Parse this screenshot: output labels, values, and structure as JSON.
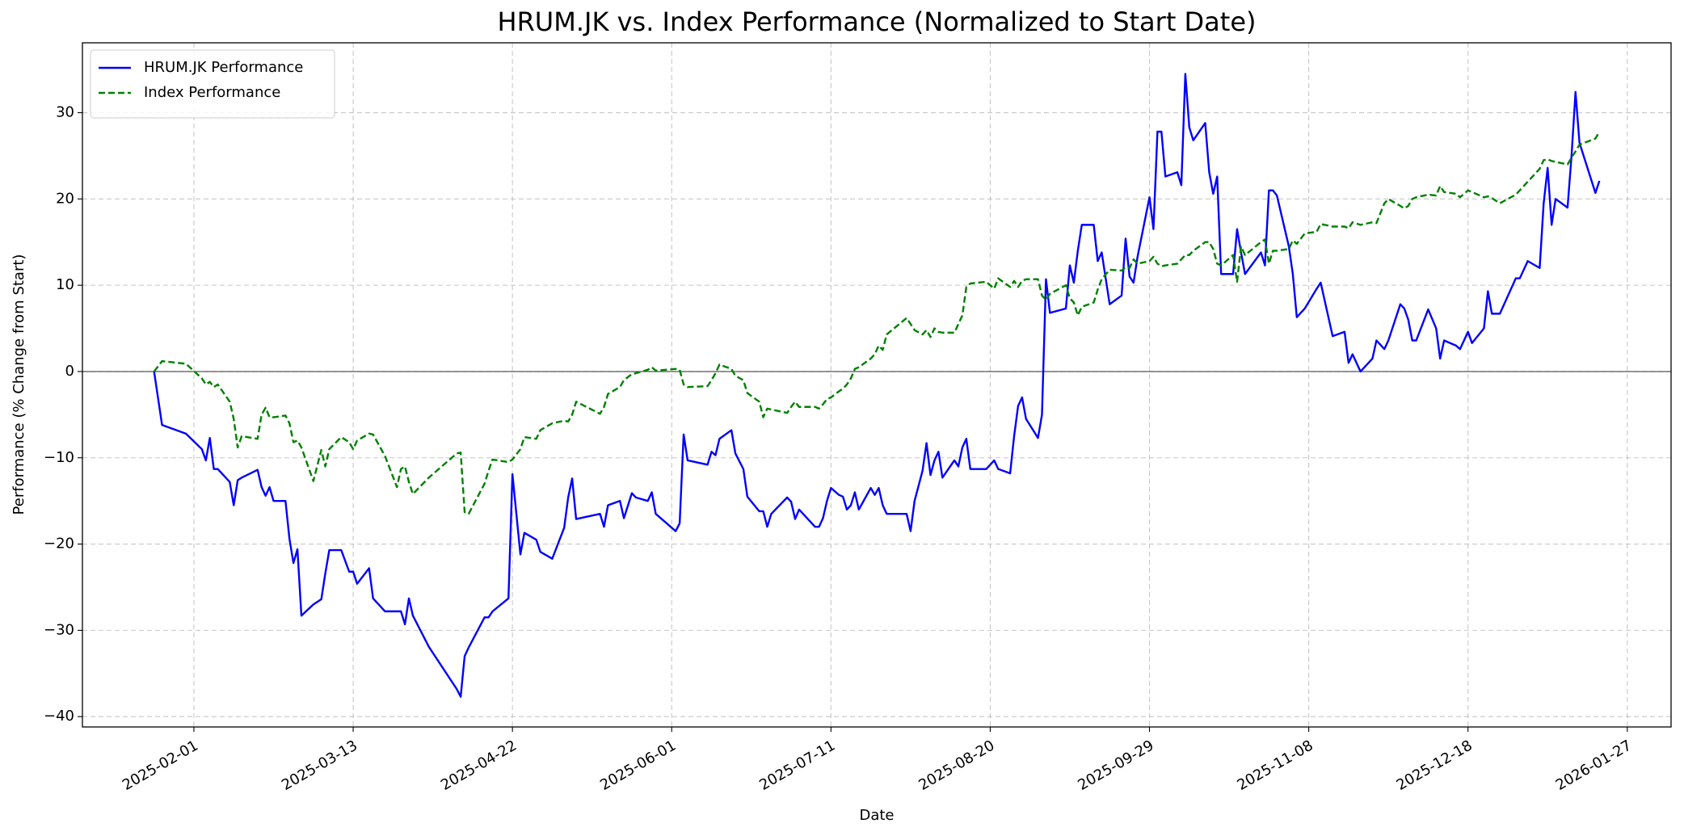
{
  "chart_data": {
    "type": "line",
    "title": "HRUM.JK vs. Index Performance (Normalized to Start Date)",
    "xlabel": "Date",
    "ylabel": "Performance (% Change from Start)",
    "x": [
      "2025-01-22",
      "2025-01-24",
      "2025-01-30",
      "2025-02-03",
      "2025-02-04",
      "2025-02-05",
      "2025-02-06",
      "2025-02-07",
      "2025-02-10",
      "2025-02-11",
      "2025-02-12",
      "2025-02-13",
      "2025-02-17",
      "2025-02-18",
      "2025-02-19",
      "2025-02-20",
      "2025-02-21",
      "2025-02-24",
      "2025-02-25",
      "2025-02-26",
      "2025-02-27",
      "2025-02-28",
      "2025-03-03",
      "2025-03-05",
      "2025-03-06",
      "2025-03-07",
      "2025-03-10",
      "2025-03-12",
      "2025-03-13",
      "2025-03-14",
      "2025-03-17",
      "2025-03-18",
      "2025-03-21",
      "2025-03-24",
      "2025-03-25",
      "2025-03-26",
      "2025-03-27",
      "2025-03-28",
      "2025-04-01",
      "2025-04-08",
      "2025-04-09",
      "2025-04-10",
      "2025-04-11",
      "2025-04-15",
      "2025-04-16",
      "2025-04-17",
      "2025-04-21",
      "2025-04-22",
      "2025-04-24",
      "2025-04-25",
      "2025-04-28",
      "2025-04-29",
      "2025-05-02",
      "2025-05-05",
      "2025-05-06",
      "2025-05-07",
      "2025-05-08",
      "2025-05-14",
      "2025-05-15",
      "2025-05-16",
      "2025-05-19",
      "2025-05-20",
      "2025-05-22",
      "2025-05-23",
      "2025-05-26",
      "2025-05-27",
      "2025-05-28",
      "2025-06-02",
      "2025-06-03",
      "2025-06-04",
      "2025-06-05",
      "2025-06-10",
      "2025-06-11",
      "2025-06-12",
      "2025-06-13",
      "2025-06-16",
      "2025-06-17",
      "2025-06-19",
      "2025-06-20",
      "2025-06-23",
      "2025-06-24",
      "2025-06-25",
      "2025-06-26",
      "2025-06-30",
      "2025-07-01",
      "2025-07-02",
      "2025-07-03",
      "2025-07-07",
      "2025-07-08",
      "2025-07-09",
      "2025-07-10",
      "2025-07-11",
      "2025-07-13",
      "2025-07-14",
      "2025-07-15",
      "2025-07-16",
      "2025-07-17",
      "2025-07-18",
      "2025-07-21",
      "2025-07-22",
      "2025-07-23",
      "2025-07-24",
      "2025-07-25",
      "2025-07-30",
      "2025-07-31",
      "2025-08-01",
      "2025-08-03",
      "2025-08-04",
      "2025-08-05",
      "2025-08-06",
      "2025-08-07",
      "2025-08-08",
      "2025-08-11",
      "2025-08-12",
      "2025-08-13",
      "2025-08-14",
      "2025-08-15",
      "2025-08-19",
      "2025-08-21",
      "2025-08-22",
      "2025-08-25",
      "2025-08-26",
      "2025-08-27",
      "2025-08-28",
      "2025-08-29",
      "2025-09-01",
      "2025-09-02",
      "2025-09-03",
      "2025-09-04",
      "2025-09-08",
      "2025-09-09",
      "2025-09-10",
      "2025-09-11",
      "2025-09-12",
      "2025-09-15",
      "2025-09-16",
      "2025-09-17",
      "2025-09-19",
      "2025-09-22",
      "2025-09-23",
      "2025-09-24",
      "2025-09-25",
      "2025-09-26",
      "2025-09-29",
      "2025-09-30",
      "2025-10-01",
      "2025-10-02",
      "2025-10-03",
      "2025-10-06",
      "2025-10-07",
      "2025-10-08",
      "2025-10-09",
      "2025-10-10",
      "2025-10-13",
      "2025-10-14",
      "2025-10-15",
      "2025-10-16",
      "2025-10-17",
      "2025-10-20",
      "2025-10-21",
      "2025-10-22",
      "2025-10-23",
      "2025-10-27",
      "2025-10-28",
      "2025-10-29",
      "2025-10-30",
      "2025-10-31",
      "2025-11-03",
      "2025-11-04",
      "2025-11-05",
      "2025-11-07",
      "2025-11-10",
      "2025-11-11",
      "2025-11-14",
      "2025-11-17",
      "2025-11-18",
      "2025-11-19",
      "2025-11-21",
      "2025-11-24",
      "2025-11-25",
      "2025-11-27",
      "2025-11-28",
      "2025-12-01",
      "2025-12-02",
      "2025-12-03",
      "2025-12-04",
      "2025-12-05",
      "2025-12-08",
      "2025-12-10",
      "2025-12-11",
      "2025-12-12",
      "2025-12-15",
      "2025-12-16",
      "2025-12-18",
      "2025-12-19",
      "2025-12-22",
      "2025-12-23",
      "2025-12-24",
      "2025-12-26",
      "2025-12-30",
      "2025-12-31",
      "2026-01-02",
      "2026-01-05",
      "2026-01-06",
      "2026-01-07",
      "2026-01-08",
      "2026-01-09",
      "2026-01-12",
      "2026-01-13",
      "2026-01-14",
      "2026-01-15",
      "2026-01-19",
      "2026-01-20"
    ],
    "series": [
      {
        "name": "HRUM.JK Performance",
        "color": "#0000ff",
        "linestyle": "solid",
        "values": [
          0,
          -6.2,
          -7.2,
          -9,
          -10.3,
          -7.7,
          -11.3,
          -11.3,
          -12.8,
          -15.5,
          -12.6,
          -12.3,
          -11.4,
          -13.4,
          -14.4,
          -13.4,
          -15,
          -15,
          -19.4,
          -22.2,
          -20.6,
          -28.3,
          -27,
          -26.4,
          -23.4,
          -20.7,
          -20.7,
          -23.2,
          -23.2,
          -24.6,
          -22.8,
          -26.3,
          -27.8,
          -27.8,
          -27.8,
          -29.3,
          -26.3,
          -28.3,
          -31.9,
          -36.8,
          -37.7,
          -33,
          -32,
          -28.5,
          -28.5,
          -27.8,
          -26.3,
          -11.9,
          -21.2,
          -18.7,
          -19.5,
          -20.9,
          -21.7,
          -18.1,
          -14.6,
          -12.4,
          -17.1,
          -16.5,
          -18,
          -15.5,
          -15,
          -17,
          -14.1,
          -14.6,
          -15,
          -14,
          -16.5,
          -18.5,
          -17.6,
          -7.3,
          -10.3,
          -10.8,
          -9.3,
          -9.7,
          -7.8,
          -6.8,
          -9.5,
          -11.3,
          -14.5,
          -16.2,
          -16.2,
          -18,
          -16.5,
          -14.6,
          -15.1,
          -17.1,
          -16,
          -18,
          -18,
          -17,
          -15,
          -13.5,
          -14.3,
          -14.5,
          -16,
          -15.5,
          -14,
          -16,
          -13.5,
          -14.3,
          -13.5,
          -15.5,
          -16.5,
          -16.5,
          -18.5,
          -15,
          -11.5,
          -8.3,
          -12,
          -10.3,
          -9.3,
          -12.3,
          -10.3,
          -11,
          -8.8,
          -7.8,
          -11.3,
          -11.3,
          -10.3,
          -11.3,
          -11.8,
          -7.5,
          -4,
          -3,
          -5.5,
          -7.7,
          -5,
          10.7,
          6.8,
          7.3,
          12.3,
          10.3,
          14,
          17,
          17,
          12.8,
          13.8,
          7.8,
          8.8,
          15.4,
          11,
          10.3,
          13.3,
          20.2,
          16.5,
          27.8,
          27.8,
          22.6,
          23.1,
          21.6,
          34.5,
          28.3,
          26.8,
          28.8,
          23.1,
          20.6,
          22.6,
          11.3,
          11.3,
          16.5,
          13.8,
          11.3,
          13.8,
          12.3,
          21,
          21,
          20.4,
          14.5,
          11.3,
          6.3,
          7.3,
          9.6,
          10.3,
          4.1,
          4.6,
          1,
          2,
          0,
          1.5,
          3.6,
          2.6,
          3.6,
          7.8,
          7.3,
          6,
          3.6,
          3.6,
          7.2,
          5,
          1.5,
          3.6,
          3,
          2.6,
          4.6,
          3.3,
          5,
          9.3,
          6.7,
          6.7,
          10.8,
          10.8,
          12.8,
          12,
          19.5,
          23.6,
          17,
          20,
          19,
          25,
          32.4,
          26.5,
          20.7,
          22.1
        ]
      },
      {
        "name": "Index Performance",
        "color": "#008000",
        "linestyle": "dashed",
        "values": [
          0,
          1.2,
          0.9,
          -0.8,
          -1.5,
          -1.2,
          -1.8,
          -1.5,
          -3.5,
          -5.5,
          -8.8,
          -7.5,
          -7.8,
          -5,
          -4.2,
          -5.3,
          -5.3,
          -5.1,
          -6,
          -8.2,
          -8,
          -8.8,
          -12.7,
          -9.1,
          -11,
          -9,
          -7.6,
          -8.2,
          -9,
          -8,
          -7.2,
          -7.3,
          -9.8,
          -13.4,
          -11.3,
          -11,
          -12.8,
          -14.2,
          -12.3,
          -9.5,
          -9.4,
          -16.3,
          -16.5,
          -13,
          -11.5,
          -10.2,
          -10.5,
          -10.2,
          -9,
          -7.6,
          -7.8,
          -6.8,
          -6,
          -5.7,
          -5.8,
          -5,
          -3.5,
          -4.9,
          -4.1,
          -2.6,
          -1.8,
          -1,
          -0.3,
          -0.2,
          0.2,
          0.5,
          0.1,
          0.3,
          0.2,
          -1.5,
          -1.8,
          -1.7,
          -1,
          -0.2,
          0.8,
          0.3,
          -0.5,
          -1,
          -2.5,
          -3.5,
          -5.3,
          -4.3,
          -4.4,
          -4.8,
          -4.1,
          -3.5,
          -4.1,
          -4.1,
          -4.3,
          -3.8,
          -3.2,
          -3,
          -2.3,
          -2,
          -1.5,
          -0.8,
          0.3,
          0.5,
          1.5,
          2,
          3,
          2.5,
          4.3,
          6.2,
          5.5,
          4.8,
          4.3,
          4.8,
          4,
          5,
          4.6,
          4.5,
          4.5,
          5.5,
          6.5,
          9.8,
          10.2,
          10.4,
          9.6,
          10.8,
          9.8,
          10.5,
          9.8,
          10.5,
          10.7,
          10.7,
          8.8,
          8.3,
          9,
          10,
          8.5,
          8,
          6.5,
          7.5,
          8,
          9.5,
          10.7,
          11.8,
          11.7,
          12.1,
          12,
          13,
          12.5,
          12.8,
          13.3,
          12.5,
          12.2,
          12.3,
          12.5,
          13,
          13.5,
          13.5,
          14,
          15,
          15,
          14.2,
          12.5,
          12.3,
          13.5,
          10.4,
          14.5,
          13.5,
          15,
          15.3,
          12.5,
          14,
          14,
          14.2,
          15.2,
          14.8,
          16,
          16.2,
          17.1,
          16.8,
          16.8,
          16.6,
          17.3,
          17,
          17.3,
          17.2,
          19.5,
          20,
          19.2,
          18.9,
          19.2,
          20,
          20.2,
          20.5,
          20.4,
          21.5,
          20.8,
          20.6,
          20.2,
          21,
          20.8,
          20.2,
          20.3,
          20.1,
          19.5,
          20.5,
          21,
          22,
          23.5,
          24.5,
          24.6,
          24.4,
          24.3,
          24,
          24.8,
          25.5,
          26.3,
          27,
          27.8
        ]
      }
    ],
    "hline": 0,
    "xlim": [
      "2025-01-04",
      "2026-02-07"
    ],
    "xticks": [
      "2025-02-01",
      "2025-03-13",
      "2025-04-22",
      "2025-06-01",
      "2025-07-11",
      "2025-08-20",
      "2025-09-29",
      "2025-11-08",
      "2025-12-18",
      "2026-01-27"
    ],
    "ylim": [
      -41.2,
      38.1
    ],
    "yticks": [
      {
        "value": -40,
        "label": "−40"
      },
      {
        "value": -30,
        "label": "−30"
      },
      {
        "value": -20,
        "label": "−20"
      },
      {
        "value": -10,
        "label": "−10"
      },
      0,
      10,
      20,
      30
    ],
    "grid": true,
    "legend": "upper left"
  }
}
